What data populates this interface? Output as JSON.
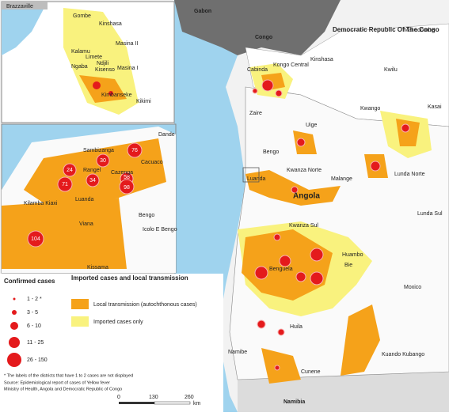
{
  "inset_kinshasa": {
    "labels": [
      "Brazzaville",
      "Gombe",
      "Kinshasa",
      "Masina II",
      "Kalamu",
      "Limete",
      "Ndjili",
      "Kisenso",
      "Masina I",
      "Ngaba",
      "Kimbanseke",
      "Kikimi"
    ]
  },
  "inset_luanda": {
    "labels": [
      "Dande",
      "Sambizanga",
      "Cazenga",
      "Rangel",
      "Cacuaco",
      "Luanda",
      "Kilamba Kiaxi",
      "Viana",
      "Icolo E Bengo",
      "Bengo",
      "Kissama"
    ],
    "case_labels": [
      76,
      30,
      24,
      71,
      34,
      58,
      98,
      104
    ]
  },
  "main_map": {
    "labels": [
      "Gabon",
      "Congo",
      "Democratic Republic Of The Congo",
      "Mai ndombe",
      "Kinshasa",
      "Kongo Central",
      "Kwilu",
      "Cabinda",
      "Kwango",
      "Kasai",
      "Zaire",
      "Uige",
      "Bengo",
      "Kwanza Norte",
      "Malange",
      "Lunda Norte",
      "Luanda",
      "Angola",
      "Lunda Sul",
      "Kwanza Sul",
      "Moxico",
      "Huambo",
      "Bie",
      "Benguela",
      "Huila",
      "Namibe",
      "Cunene",
      "Kuando Kubango",
      "Namibia"
    ]
  },
  "legend": {
    "cases_title": "Confirmed cases",
    "cases_classes": [
      "1 - 2 *",
      "3 - 5",
      "6 - 10",
      "11 - 25",
      "26 - 150"
    ],
    "transmission_title": "Imported cases and local transmission",
    "transmission_classes": [
      "Local transmission (autochthonous cases)",
      "Imported cases only"
    ]
  },
  "notes": [
    "* The labels of the districts that have 1 to 2 cases are not displayed",
    "Source: Epidemiological report of cases of Yellow fever",
    "Ministry of Health, Angola and Democratic Republic of Congo"
  ],
  "scale": {
    "ticks": [
      0,
      130,
      260
    ],
    "unit": "km"
  }
}
